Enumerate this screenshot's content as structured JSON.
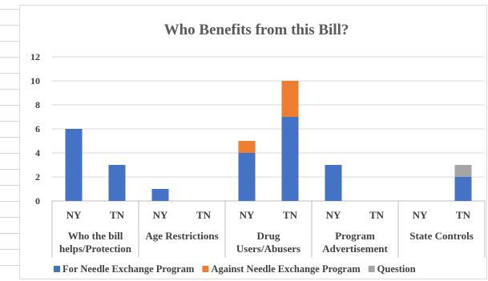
{
  "chart_data": {
    "type": "bar",
    "stacked": true,
    "title": "Who Benefits from this Bill?",
    "xlabel": "",
    "ylabel": "",
    "ylim": [
      0,
      12
    ],
    "yticks": [
      0,
      2,
      4,
      6,
      8,
      10,
      12
    ],
    "grid": true,
    "legend_position": "bottom",
    "groups": [
      {
        "label": [
          "Who the bill",
          "helps/Protection"
        ],
        "categories": [
          "NY",
          "TN"
        ]
      },
      {
        "label": [
          "Age Restrictions"
        ],
        "categories": [
          "NY",
          "TN"
        ]
      },
      {
        "label": [
          "Drug",
          "Users/Abusers"
        ],
        "categories": [
          "NY",
          "TN"
        ]
      },
      {
        "label": [
          "Program",
          "Advertisement"
        ],
        "categories": [
          "NY",
          "TN"
        ]
      },
      {
        "label": [
          "State Controls"
        ],
        "categories": [
          "NY",
          "TN"
        ]
      }
    ],
    "series": [
      {
        "name": "For Needle Exchange Program",
        "color": "#4472c4",
        "values": [
          6,
          3,
          1,
          0,
          4,
          7,
          3,
          0,
          0,
          2
        ]
      },
      {
        "name": "Against Needle Exchange Program",
        "color": "#ed7d31",
        "values": [
          0,
          0,
          0,
          0,
          1,
          3,
          0,
          0,
          0,
          0
        ]
      },
      {
        "name": "Question",
        "color": "#a5a5a5",
        "values": [
          0,
          0,
          0,
          0,
          0,
          0,
          0,
          0,
          0,
          1
        ]
      }
    ]
  }
}
